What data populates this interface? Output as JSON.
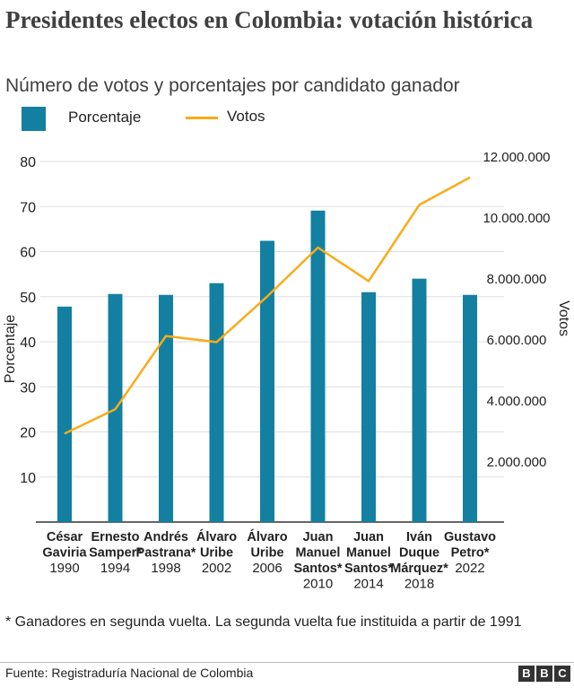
{
  "header": {
    "title": "Presidentes electos en Colombia: votación histórica",
    "subtitle": "Número de votos y porcentajes por candidato ganador"
  },
  "colors": {
    "bar": "#1380A1",
    "line": "#FAAB18",
    "grid": "#dddddd",
    "axis": "#333333"
  },
  "chart_data": {
    "type": "bar",
    "categories": [
      {
        "name": [
          "César",
          "Gaviria"
        ],
        "year": "1990"
      },
      {
        "name": [
          "Ernesto",
          "Samper*"
        ],
        "year": "1994"
      },
      {
        "name": [
          "Andrés",
          "Pastrana*"
        ],
        "year": "1998"
      },
      {
        "name": [
          "Álvaro",
          "Uribe"
        ],
        "year": "2002"
      },
      {
        "name": [
          "Álvaro",
          "Uribe"
        ],
        "year": "2006"
      },
      {
        "name": [
          "Juan",
          "Manuel",
          "Santos*"
        ],
        "year": "2010"
      },
      {
        "name": [
          "Juan",
          "Manuel",
          "Santos*"
        ],
        "year": "2014"
      },
      {
        "name": [
          "Iván",
          "Duque",
          "Márquez*"
        ],
        "year": "2018"
      },
      {
        "name": [
          "Gustavo",
          "Petro*"
        ],
        "year": "2022"
      }
    ],
    "series": [
      {
        "name": "Porcentaje",
        "type": "bar",
        "axis": "left",
        "values": [
          47.8,
          50.6,
          50.4,
          53.0,
          62.4,
          69.1,
          51.0,
          54.0,
          50.4
        ]
      },
      {
        "name": "Votos",
        "type": "line",
        "axis": "right",
        "values": [
          2900000,
          3700000,
          6100000,
          5900000,
          7400000,
          9000000,
          7900000,
          10400000,
          11300000
        ]
      }
    ],
    "ylabel": "Porcentaje",
    "y2label": "Votos",
    "ylim": [
      0,
      80
    ],
    "y2lim": [
      0,
      12000000
    ],
    "yticks": [
      "10",
      "20",
      "30",
      "40",
      "50",
      "60",
      "70",
      "80"
    ],
    "y2ticks": [
      "2.000.000",
      "4.000.000",
      "6.000.000",
      "8.000.000",
      "10.000.000",
      "12.000.000"
    ],
    "legend": {
      "bar_label": "Porcentaje",
      "line_label": "Votos",
      "placement": "top-left"
    },
    "grid": true
  },
  "footer": {
    "footnote": "* Ganadores en segunda vuelta. La segunda vuelta fue instituida a partir de 1991",
    "source": "Fuente: Registraduría Nacional de Colombia",
    "logo": [
      "B",
      "B",
      "C"
    ]
  }
}
